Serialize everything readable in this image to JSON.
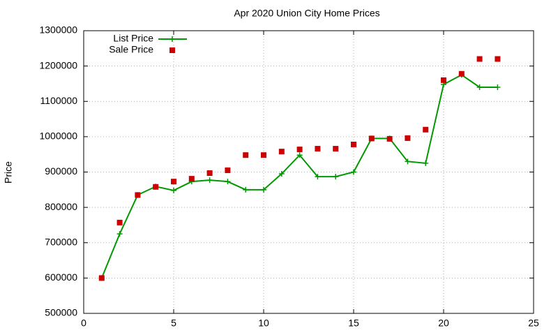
{
  "chart_data": {
    "type": "line",
    "title": "Apr 2020 Union City Home Prices",
    "y_label": "Price",
    "x": [
      1,
      2,
      3,
      4,
      5,
      6,
      7,
      8,
      9,
      10,
      11,
      12,
      13,
      14,
      15,
      16,
      17,
      18,
      19,
      20,
      21,
      22,
      23
    ],
    "series": [
      {
        "name": "List Price",
        "color": "#009900",
        "style": "line-points",
        "values": [
          600000,
          725000,
          835000,
          859000,
          848000,
          873000,
          877000,
          873000,
          850000,
          850000,
          895000,
          948000,
          887000,
          887000,
          900000,
          995000,
          995000,
          930000,
          925000,
          1148000,
          1175000,
          1140000,
          1140000
        ]
      },
      {
        "name": "Sale Price",
        "color": "#cc0000",
        "style": "points",
        "values": [
          600000,
          757000,
          835000,
          858000,
          873000,
          881000,
          897000,
          905000,
          948000,
          948000,
          958000,
          964000,
          966000,
          966000,
          978000,
          995000,
          994000,
          996000,
          1020000,
          1160000,
          1178000,
          1220000,
          1220000
        ]
      }
    ],
    "xlim": [
      0,
      25
    ],
    "xticks": [
      0,
      5,
      10,
      15,
      20,
      25
    ],
    "ylim": [
      500000,
      1300000
    ],
    "yticks": [
      500000,
      600000,
      700000,
      800000,
      900000,
      1000000,
      1100000,
      1200000,
      1300000
    ],
    "grid": true,
    "legend": "top-left"
  }
}
